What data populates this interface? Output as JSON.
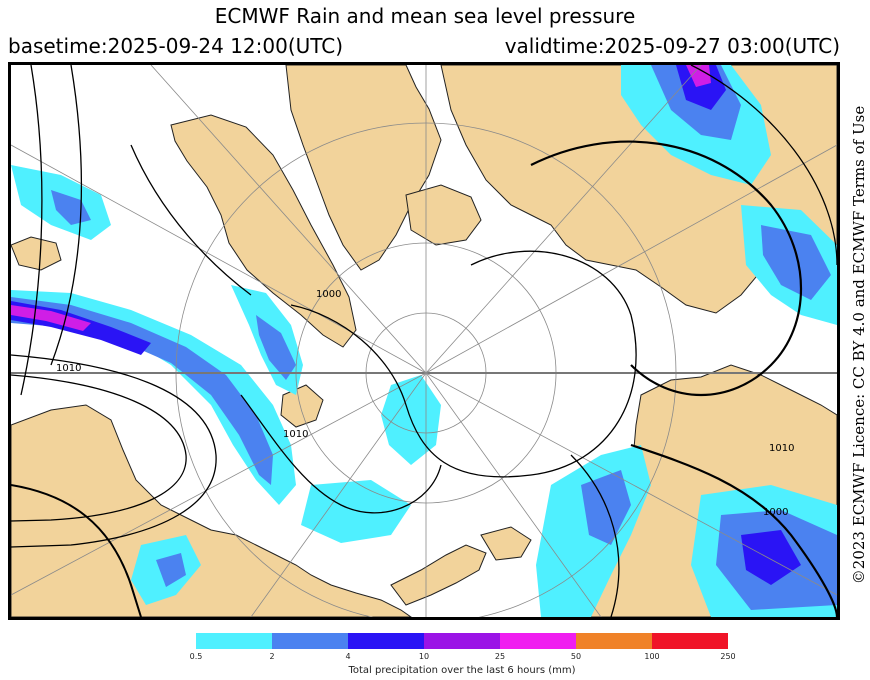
{
  "title": "ECMWF Rain and mean sea level pressure",
  "basetime": "basetime:2025-09-24 12:00(UTC)",
  "validtime": "validtime:2025-09-27 03:00(UTC)",
  "license": "©2023 ECMWF Licence: CC BY 4.0 and ECMWF Terms of Use",
  "isobar_labels": [
    "1000",
    "1010",
    "1010",
    "1010",
    "1000"
  ],
  "colorbar": {
    "label": "Total precipitation over the last 6 hours (mm)",
    "ticks": [
      "0.5",
      "2",
      "4",
      "10",
      "25",
      "50",
      "100",
      "250"
    ],
    "colors": [
      "#4ff0ff",
      "#4b82f0",
      "#2a14f5",
      "#9b14e6",
      "#f01ef0",
      "#f08228",
      "#f01428"
    ]
  },
  "colors": {
    "land": "#f2d39b",
    "ocean": "#ffffff",
    "rain_light": "#4ff0ff",
    "rain_moderate": "#4b82f0",
    "rain_heavy": "#2a14f5",
    "rain_very_heavy": "#9b14e6",
    "rain_extreme": "#f01ef0"
  }
}
